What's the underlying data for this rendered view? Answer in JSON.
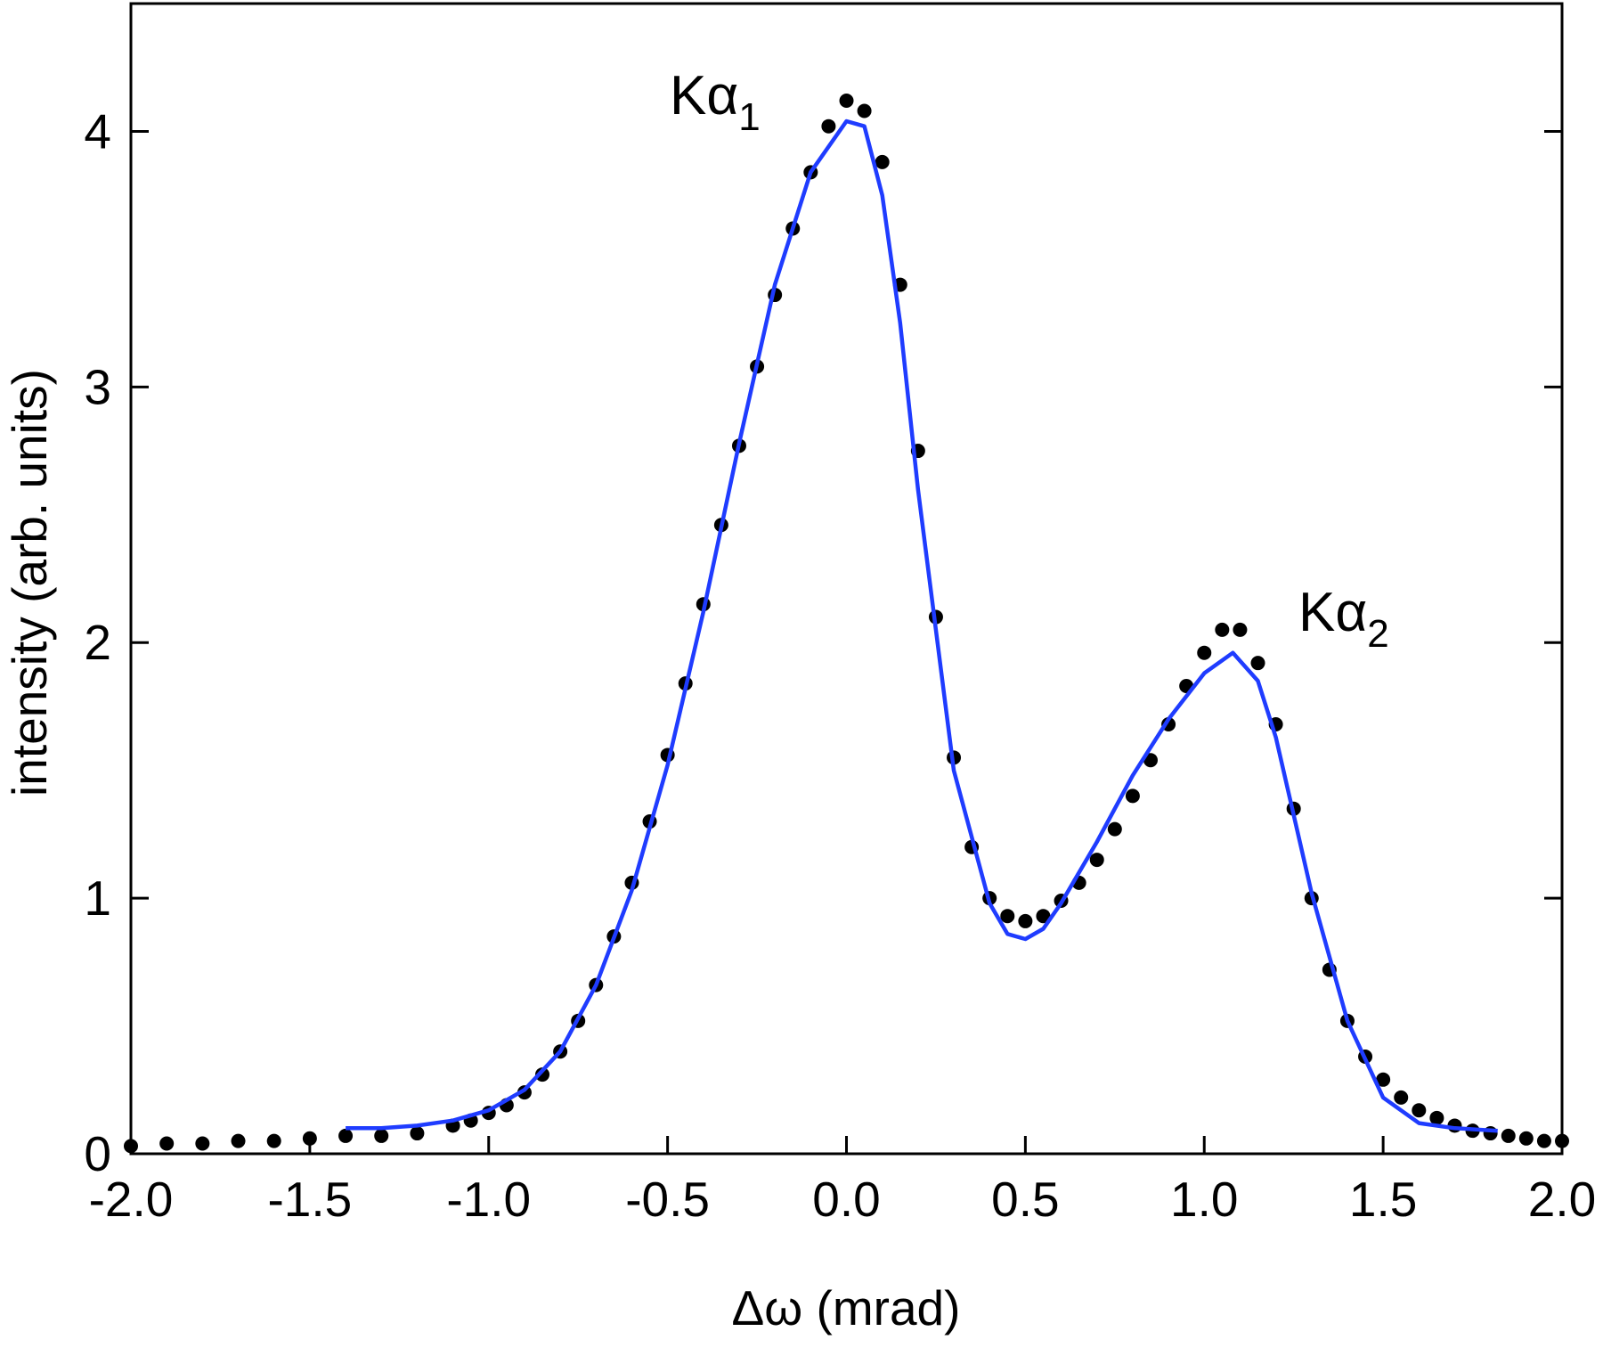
{
  "chart_data": {
    "type": "scatter-line",
    "x_label": "Δω (mrad)",
    "y_label": "intensity (arb. units)",
    "annotations": [
      {
        "text": "Kα",
        "sub": "1"
      },
      {
        "text": "Kα",
        "sub": "2"
      }
    ],
    "xlim": [
      -2.0,
      2.0
    ],
    "ylim": [
      0,
      4.5
    ],
    "xticks": [
      {
        "value": -2.0,
        "label": "-2.0"
      },
      -1.5,
      {
        "value": -1.0,
        "label": "-1.0"
      },
      -0.5,
      {
        "value": 0.0,
        "label": "0.0"
      },
      0.5,
      {
        "value": 1.0,
        "label": "1.0"
      },
      1.5,
      {
        "value": 2.0,
        "label": "2.0"
      }
    ],
    "yticks": [
      0,
      1,
      2,
      3,
      4
    ],
    "series": [
      {
        "kind": "points",
        "color": "#000000",
        "x": [
          -2.0,
          -1.9,
          -1.8,
          -1.7,
          -1.6,
          -1.5,
          -1.4,
          -1.3,
          -1.2,
          -1.1,
          -1.05,
          -1.0,
          -0.95,
          -0.9,
          -0.85,
          -0.8,
          -0.75,
          -0.7,
          -0.65,
          -0.6,
          -0.55,
          -0.5,
          -0.45,
          -0.4,
          -0.35,
          -0.3,
          -0.25,
          -0.2,
          -0.15,
          -0.1,
          -0.05,
          0.0,
          0.05,
          0.1,
          0.15,
          0.2,
          0.25,
          0.3,
          0.35,
          0.4,
          0.45,
          0.5,
          0.55,
          0.6,
          0.65,
          0.7,
          0.75,
          0.8,
          0.85,
          0.9,
          0.95,
          1.0,
          1.05,
          1.1,
          1.15,
          1.2,
          1.25,
          1.3,
          1.35,
          1.4,
          1.45,
          1.5,
          1.55,
          1.6,
          1.65,
          1.7,
          1.75,
          1.8,
          1.85,
          1.9,
          1.95,
          2.0
        ],
        "values": [
          0.03,
          0.04,
          0.04,
          0.05,
          0.05,
          0.06,
          0.07,
          0.07,
          0.08,
          0.11,
          0.13,
          0.16,
          0.19,
          0.24,
          0.31,
          0.4,
          0.52,
          0.66,
          0.85,
          1.06,
          1.3,
          1.56,
          1.84,
          2.15,
          2.46,
          2.77,
          3.08,
          3.36,
          3.62,
          3.84,
          4.02,
          4.12,
          4.08,
          3.88,
          3.4,
          2.75,
          2.1,
          1.55,
          1.2,
          1.0,
          0.93,
          0.91,
          0.93,
          0.99,
          1.06,
          1.15,
          1.27,
          1.4,
          1.54,
          1.68,
          1.83,
          1.96,
          2.05,
          2.05,
          1.92,
          1.68,
          1.35,
          1.0,
          0.72,
          0.52,
          0.38,
          0.29,
          0.22,
          0.17,
          0.14,
          0.11,
          0.09,
          0.08,
          0.07,
          0.06,
          0.05,
          0.05
        ]
      },
      {
        "kind": "line",
        "color": "#1f3cff",
        "x": [
          -1.4,
          -1.3,
          -1.2,
          -1.1,
          -1.0,
          -0.9,
          -0.8,
          -0.7,
          -0.6,
          -0.5,
          -0.4,
          -0.3,
          -0.2,
          -0.1,
          0.0,
          0.05,
          0.1,
          0.15,
          0.2,
          0.3,
          0.4,
          0.45,
          0.5,
          0.55,
          0.6,
          0.7,
          0.8,
          0.9,
          1.0,
          1.08,
          1.15,
          1.2,
          1.3,
          1.4,
          1.5,
          1.6,
          1.7,
          1.82
        ],
        "values": [
          0.1,
          0.1,
          0.11,
          0.13,
          0.17,
          0.25,
          0.4,
          0.66,
          1.03,
          1.52,
          2.12,
          2.78,
          3.4,
          3.84,
          4.04,
          4.02,
          3.75,
          3.25,
          2.6,
          1.5,
          0.98,
          0.86,
          0.84,
          0.88,
          0.98,
          1.22,
          1.48,
          1.7,
          1.88,
          1.96,
          1.85,
          1.63,
          1.02,
          0.52,
          0.22,
          0.12,
          0.1,
          0.09
        ]
      }
    ]
  }
}
